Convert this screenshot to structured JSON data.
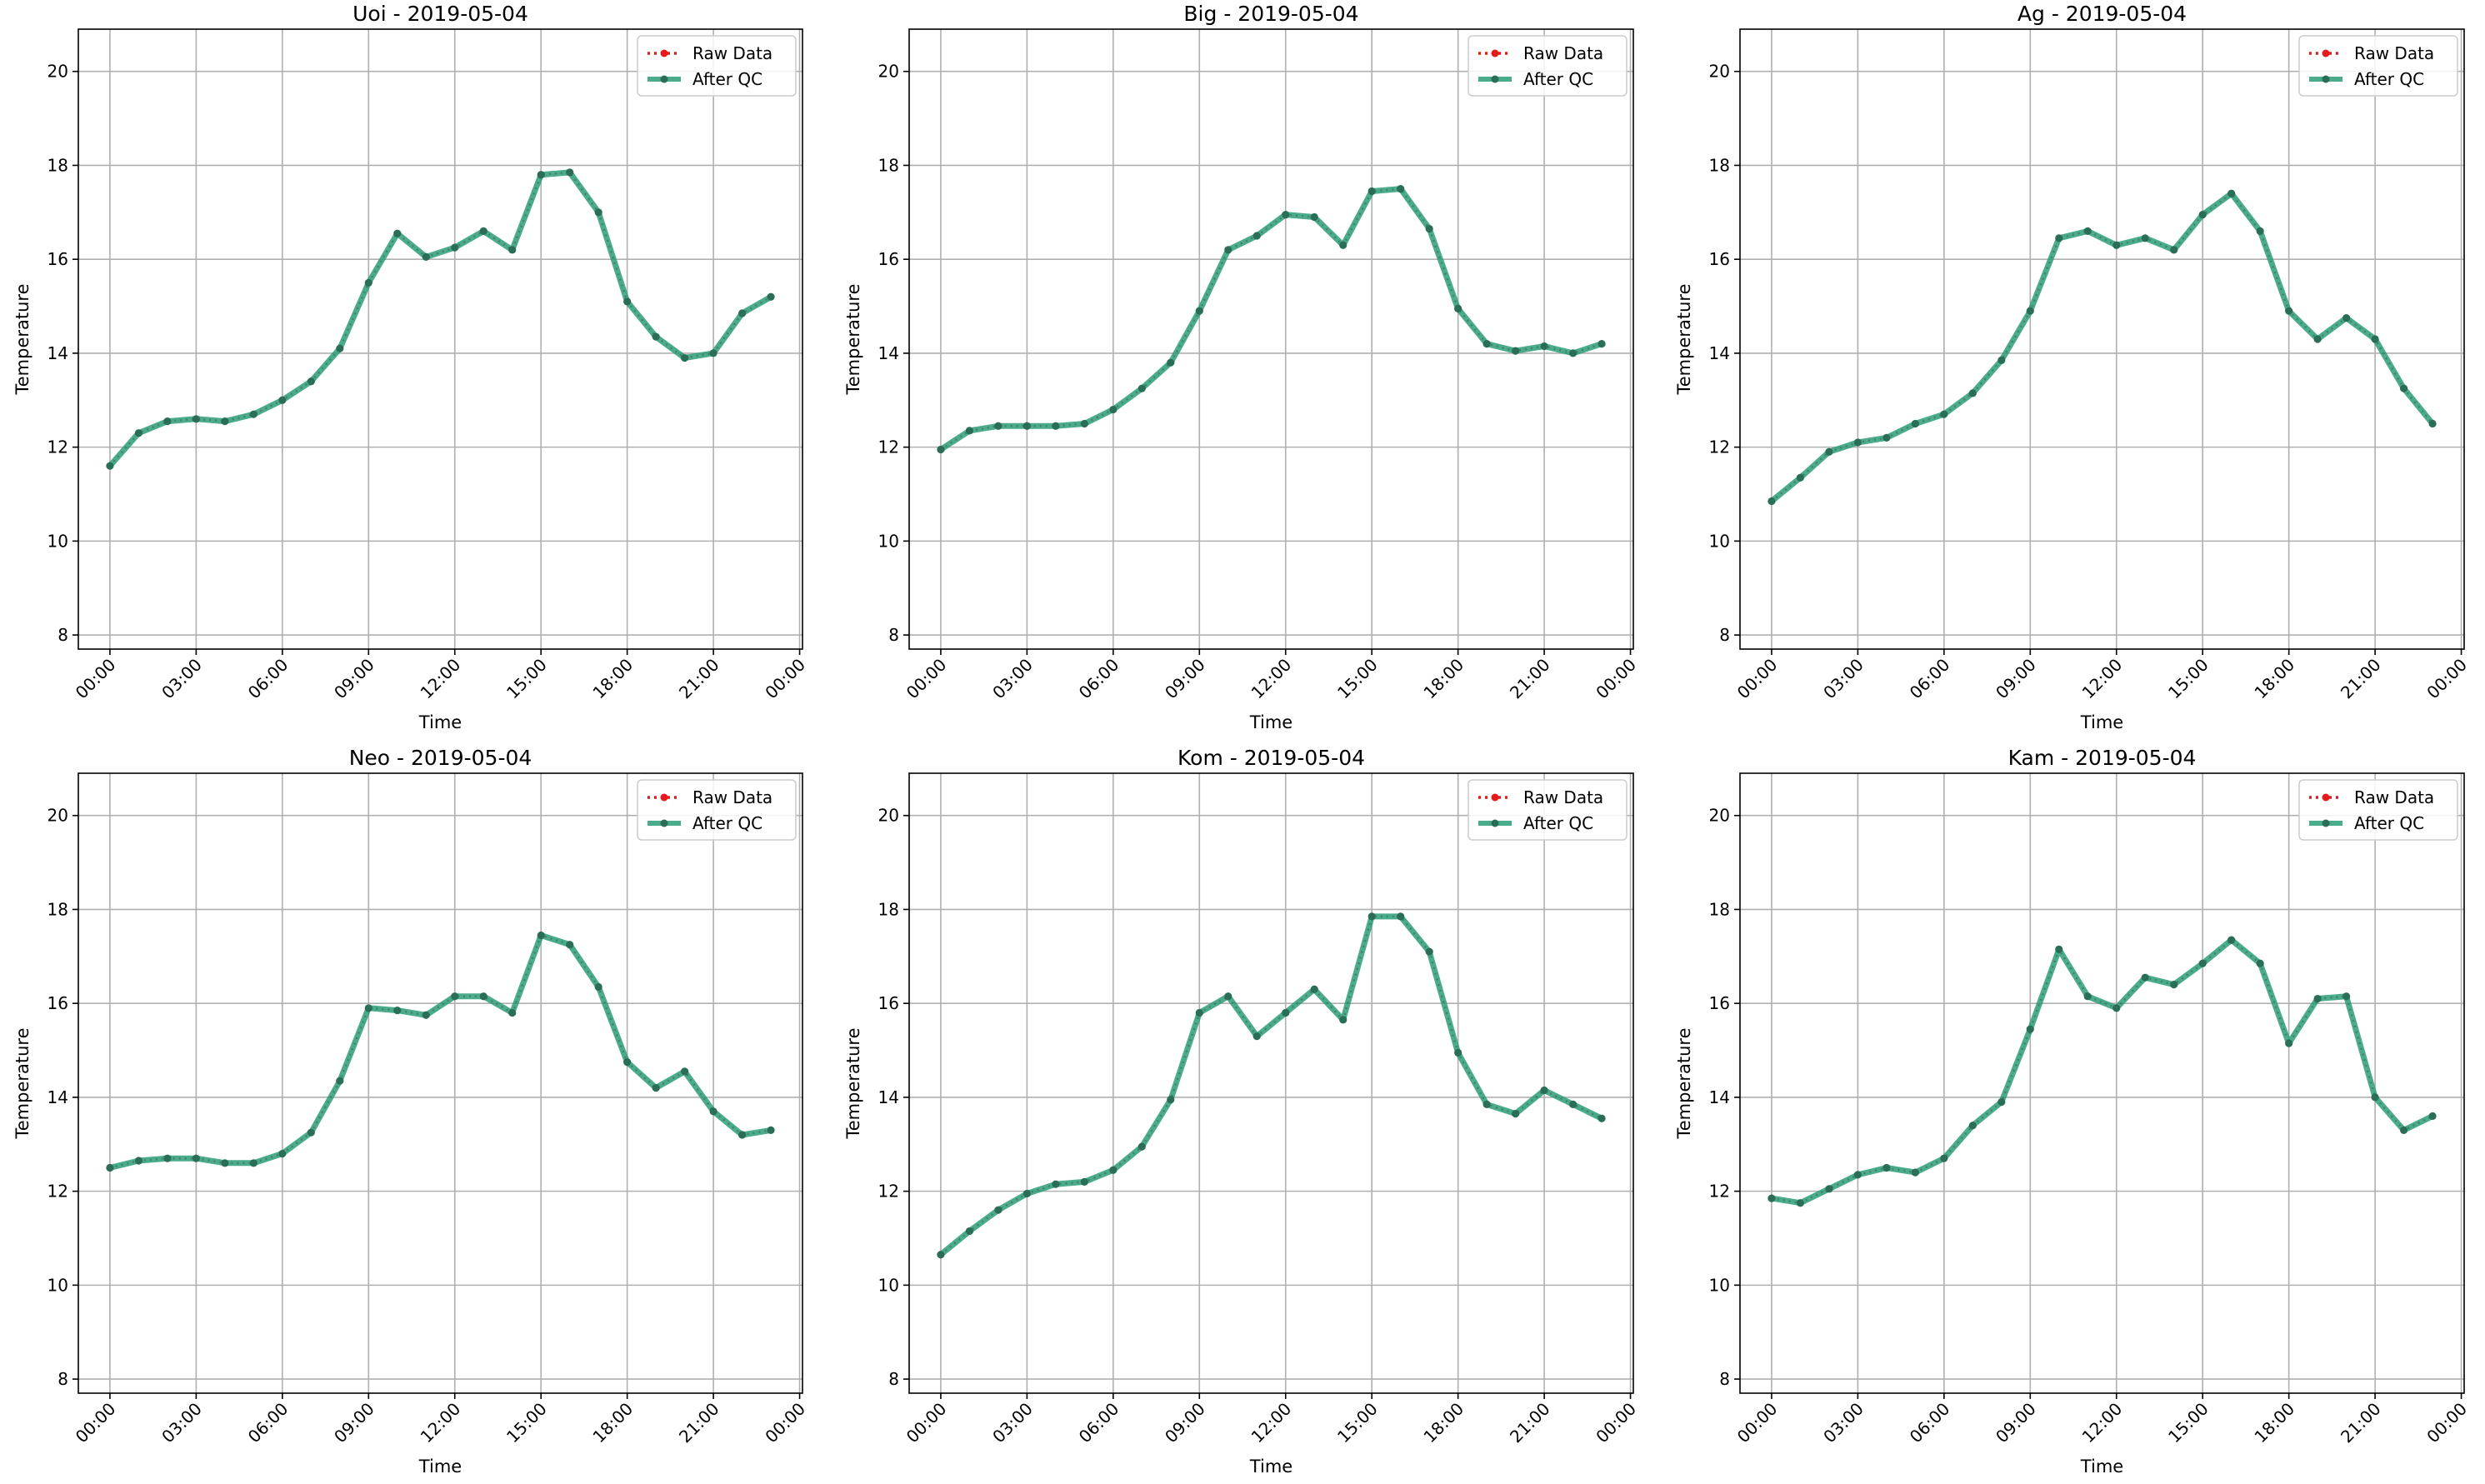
{
  "figure": {
    "x_tick_labels": [
      "00:00",
      "03:00",
      "06:00",
      "09:00",
      "12:00",
      "15:00",
      "18:00",
      "21:00",
      "00:00"
    ],
    "y_ticks": [
      8,
      10,
      12,
      14,
      16,
      18,
      20
    ],
    "legend": {
      "raw": "Raw Data",
      "qc": "After QC"
    },
    "colors": {
      "raw": "#e41a1c",
      "qc": "#2a9d76",
      "markers": "#2b6e57"
    }
  },
  "chart_data": [
    {
      "type": "line",
      "title": "Uoi - 2019-05-04",
      "xlabel": "Time",
      "ylabel": "Temperature",
      "x_unit": "hours since 2019-05-04 00:00",
      "xlim": [
        -1.1,
        24.1
      ],
      "ylim": [
        7.7,
        20.9
      ],
      "grid": true,
      "legend_position": "top-right",
      "series": [
        {
          "name": "Raw Data",
          "values": [
            11.6,
            12.3,
            12.55,
            12.6,
            12.55,
            12.7,
            13.0,
            13.4,
            14.1,
            15.5,
            16.55,
            16.05,
            16.25,
            16.6,
            16.2,
            17.8,
            17.85,
            17.0,
            15.1,
            14.35,
            13.9,
            14.0,
            14.85,
            15.2
          ]
        },
        {
          "name": "After QC",
          "values": [
            11.6,
            12.3,
            12.55,
            12.6,
            12.55,
            12.7,
            13.0,
            13.4,
            14.1,
            15.5,
            16.55,
            16.05,
            16.25,
            16.6,
            16.2,
            17.8,
            17.85,
            17.0,
            15.1,
            14.35,
            13.9,
            14.0,
            14.85,
            15.2
          ]
        }
      ]
    },
    {
      "type": "line",
      "title": "Big - 2019-05-04",
      "xlabel": "Time",
      "ylabel": "Temperature",
      "x_unit": "hours since 2019-05-04 00:00",
      "xlim": [
        -1.1,
        24.1
      ],
      "ylim": [
        7.7,
        20.9
      ],
      "grid": true,
      "legend_position": "top-right",
      "series": [
        {
          "name": "Raw Data",
          "values": [
            11.95,
            12.35,
            12.45,
            12.45,
            12.45,
            12.5,
            12.8,
            13.25,
            13.8,
            14.9,
            16.2,
            16.5,
            16.95,
            16.9,
            16.3,
            17.45,
            17.5,
            16.65,
            14.95,
            14.2,
            14.05,
            14.15,
            14.0,
            14.2
          ]
        },
        {
          "name": "After QC",
          "values": [
            11.95,
            12.35,
            12.45,
            12.45,
            12.45,
            12.5,
            12.8,
            13.25,
            13.8,
            14.9,
            16.2,
            16.5,
            16.95,
            16.9,
            16.3,
            17.45,
            17.5,
            16.65,
            14.95,
            14.2,
            14.05,
            14.15,
            14.0,
            14.2
          ]
        }
      ]
    },
    {
      "type": "line",
      "title": "Ag - 2019-05-04",
      "xlabel": "Time",
      "ylabel": "Temperature",
      "x_unit": "hours since 2019-05-04 00:00",
      "xlim": [
        -1.1,
        24.1
      ],
      "ylim": [
        7.7,
        20.9
      ],
      "grid": true,
      "legend_position": "top-right",
      "series": [
        {
          "name": "Raw Data",
          "values": [
            10.85,
            11.35,
            11.9,
            12.1,
            12.2,
            12.5,
            12.7,
            13.15,
            13.85,
            14.9,
            16.45,
            16.6,
            16.3,
            16.45,
            16.2,
            16.95,
            17.4,
            16.6,
            14.9,
            14.3,
            14.75,
            14.3,
            13.25,
            12.5
          ]
        },
        {
          "name": "After QC",
          "values": [
            10.85,
            11.35,
            11.9,
            12.1,
            12.2,
            12.5,
            12.7,
            13.15,
            13.85,
            14.9,
            16.45,
            16.6,
            16.3,
            16.45,
            16.2,
            16.95,
            17.4,
            16.6,
            14.9,
            14.3,
            14.75,
            14.3,
            13.25,
            12.5
          ]
        }
      ]
    },
    {
      "type": "line",
      "title": "Neo - 2019-05-04",
      "xlabel": "Time",
      "ylabel": "Temperature",
      "x_unit": "hours since 2019-05-04 00:00",
      "xlim": [
        -1.1,
        24.1
      ],
      "ylim": [
        7.7,
        20.9
      ],
      "grid": true,
      "legend_position": "top-right",
      "series": [
        {
          "name": "Raw Data",
          "values": [
            12.5,
            12.65,
            12.7,
            12.7,
            12.6,
            12.6,
            12.8,
            13.25,
            14.35,
            15.9,
            15.85,
            15.75,
            16.15,
            16.15,
            15.8,
            17.45,
            17.25,
            16.35,
            14.75,
            14.2,
            14.55,
            13.7,
            13.2,
            13.3
          ]
        },
        {
          "name": "After QC",
          "values": [
            12.5,
            12.65,
            12.7,
            12.7,
            12.6,
            12.6,
            12.8,
            13.25,
            14.35,
            15.9,
            15.85,
            15.75,
            16.15,
            16.15,
            15.8,
            17.45,
            17.25,
            16.35,
            14.75,
            14.2,
            14.55,
            13.7,
            13.2,
            13.3
          ]
        }
      ]
    },
    {
      "type": "line",
      "title": "Kom - 2019-05-04",
      "xlabel": "Time",
      "ylabel": "Temperature",
      "x_unit": "hours since 2019-05-04 00:00",
      "xlim": [
        -1.1,
        24.1
      ],
      "ylim": [
        7.7,
        20.9
      ],
      "grid": true,
      "legend_position": "top-right",
      "series": [
        {
          "name": "Raw Data",
          "values": [
            10.65,
            11.15,
            11.6,
            11.95,
            12.15,
            12.2,
            12.45,
            12.95,
            13.95,
            15.8,
            16.15,
            15.3,
            15.8,
            16.3,
            15.65,
            17.85,
            17.85,
            17.1,
            14.95,
            13.85,
            13.65,
            14.15,
            13.85,
            13.55
          ]
        },
        {
          "name": "After QC",
          "values": [
            10.65,
            11.15,
            11.6,
            11.95,
            12.15,
            12.2,
            12.45,
            12.95,
            13.95,
            15.8,
            16.15,
            15.3,
            15.8,
            16.3,
            15.65,
            17.85,
            17.85,
            17.1,
            14.95,
            13.85,
            13.65,
            14.15,
            13.85,
            13.55
          ]
        }
      ]
    },
    {
      "type": "line",
      "title": "Kam - 2019-05-04",
      "xlabel": "Time",
      "ylabel": "Temperature",
      "x_unit": "hours since 2019-05-04 00:00",
      "xlim": [
        -1.1,
        24.1
      ],
      "ylim": [
        7.7,
        20.9
      ],
      "grid": true,
      "legend_position": "top-right",
      "series": [
        {
          "name": "Raw Data",
          "values": [
            11.85,
            11.75,
            12.05,
            12.35,
            12.5,
            12.4,
            12.7,
            13.4,
            13.9,
            15.45,
            17.15,
            16.15,
            15.9,
            16.55,
            16.4,
            16.85,
            17.35,
            16.85,
            15.15,
            16.1,
            16.15,
            14.0,
            13.3,
            13.6
          ]
        },
        {
          "name": "After QC",
          "values": [
            11.85,
            11.75,
            12.05,
            12.35,
            12.5,
            12.4,
            12.7,
            13.4,
            13.9,
            15.45,
            17.15,
            16.15,
            15.9,
            16.55,
            16.4,
            16.85,
            17.35,
            16.85,
            15.15,
            16.1,
            16.15,
            14.0,
            13.3,
            13.6
          ]
        }
      ]
    }
  ]
}
